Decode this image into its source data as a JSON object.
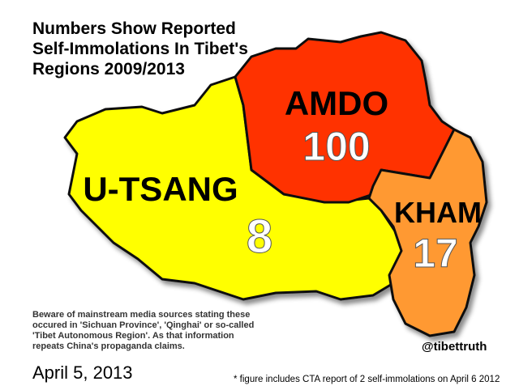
{
  "title": [
    "Numbers Show Reported",
    "Self-Immolations In Tibet's",
    "Regions 2009/2013"
  ],
  "regions": [
    {
      "name": "AMDO",
      "count": "100"
    },
    {
      "name": "U-TSANG",
      "count": "8"
    },
    {
      "name": "KHAM",
      "count": "17"
    }
  ],
  "note": [
    "Beware of mainstream media sources stating these",
    "occured in 'Sichuan Province', 'Qinghai' or so-called",
    "'Tibet Autonomous Region'. As that information",
    "repeats China's propaganda claims."
  ],
  "handle": "@tibettruth",
  "date": "April 5, 2013",
  "footnote": "* figure includes CTA report of 2 self-immolations on April 6 2012"
}
